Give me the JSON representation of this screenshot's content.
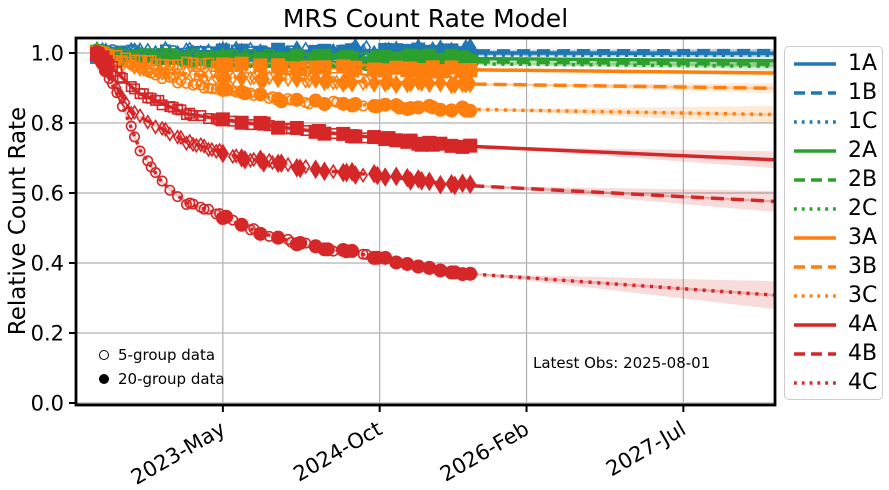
{
  "chart_data": {
    "type": "line",
    "title": "MRS Count Rate Model",
    "xlabel": "",
    "ylabel": "Relative Count Rate",
    "grid": true,
    "grid_color": "#b0b0b0",
    "background_color": "#ffffff",
    "legend_position": "outside-right",
    "x_axis": {
      "kind": "date",
      "range_decimal_years": [
        2022.0,
        2028.33
      ],
      "ticks": [
        {
          "t": 2023.33,
          "label": "2023-May"
        },
        {
          "t": 2024.75,
          "label": "2024-Oct"
        },
        {
          "t": 2026.08,
          "label": "2026-Feb"
        },
        {
          "t": 2027.5,
          "label": "2027-Jul"
        }
      ]
    },
    "y_axis": {
      "range": [
        -0.006,
        1.043
      ],
      "ticks": [
        {
          "v": 0.0,
          "label": "0.0"
        },
        {
          "v": 0.2,
          "label": "0.2"
        },
        {
          "v": 0.4,
          "label": "0.4"
        },
        {
          "v": 0.6,
          "label": "0.6"
        },
        {
          "v": 0.8,
          "label": "0.8"
        },
        {
          "v": 1.0,
          "label": "1.0"
        }
      ]
    },
    "annotations": {
      "latest_obs_label": "Latest Obs: 2025-08-01",
      "latest_obs_t": 2025.58
    },
    "marker_legend": [
      {
        "label": "5-group data",
        "filled": false
      },
      {
        "label": "20-group data",
        "filled": true
      }
    ],
    "series": [
      {
        "name": "1A",
        "channel": 1,
        "color": "#1f77b4",
        "style": "solid",
        "marker": "square",
        "scatter": 0.011,
        "band": 0.005,
        "points": [
          [
            2022.19,
            1.0
          ],
          [
            2022.5,
            1.0
          ],
          [
            2023.0,
            1.0
          ],
          [
            2024.0,
            1.0
          ],
          [
            2025.58,
            1.0
          ],
          [
            2028.33,
            0.999
          ]
        ]
      },
      {
        "name": "1B",
        "channel": 1,
        "color": "#1f77b4",
        "style": "dashed",
        "marker": "diamond",
        "scatter": 0.011,
        "band": 0.005,
        "points": [
          [
            2022.19,
            1.0
          ],
          [
            2022.5,
            1.002
          ],
          [
            2023.0,
            1.004
          ],
          [
            2024.0,
            1.005
          ],
          [
            2025.58,
            1.006
          ],
          [
            2028.33,
            1.007
          ]
        ]
      },
      {
        "name": "1C",
        "channel": 1,
        "color": "#1f77b4",
        "style": "dotted",
        "marker": "circle",
        "scatter": 0.011,
        "band": 0.006,
        "points": [
          [
            2022.19,
            1.0
          ],
          [
            2022.5,
            0.998
          ],
          [
            2023.0,
            0.996
          ],
          [
            2024.0,
            0.995
          ],
          [
            2025.58,
            0.994
          ],
          [
            2028.33,
            0.993
          ]
        ]
      },
      {
        "name": "2A",
        "channel": 2,
        "color": "#2ca02c",
        "style": "solid",
        "marker": "square",
        "scatter": 0.008,
        "band": 0.007,
        "points": [
          [
            2022.19,
            1.0
          ],
          [
            2022.5,
            0.993
          ],
          [
            2023.0,
            0.99
          ],
          [
            2024.0,
            0.987
          ],
          [
            2025.58,
            0.984
          ],
          [
            2028.33,
            0.978
          ]
        ]
      },
      {
        "name": "2B",
        "channel": 2,
        "color": "#2ca02c",
        "style": "dashed",
        "marker": "diamond",
        "scatter": 0.008,
        "band": 0.009,
        "points": [
          [
            2022.19,
            1.0
          ],
          [
            2022.5,
            0.989
          ],
          [
            2023.0,
            0.984
          ],
          [
            2024.0,
            0.979
          ],
          [
            2025.58,
            0.975
          ],
          [
            2028.33,
            0.968
          ]
        ]
      },
      {
        "name": "2C",
        "channel": 2,
        "color": "#2ca02c",
        "style": "dotted",
        "marker": "circle",
        "scatter": 0.008,
        "band": 0.012,
        "points": [
          [
            2022.19,
            1.0
          ],
          [
            2022.5,
            0.986
          ],
          [
            2023.0,
            0.979
          ],
          [
            2024.0,
            0.973
          ],
          [
            2025.58,
            0.969
          ],
          [
            2028.33,
            0.962
          ]
        ]
      },
      {
        "name": "3A",
        "channel": 3,
        "color": "#ff7f0e",
        "style": "solid",
        "marker": "square",
        "scatter": 0.0065,
        "band": 0.008,
        "points": [
          [
            2022.19,
            1.0
          ],
          [
            2022.5,
            0.978
          ],
          [
            2023.0,
            0.968
          ],
          [
            2023.5,
            0.963
          ],
          [
            2024.5,
            0.957
          ],
          [
            2025.58,
            0.952
          ],
          [
            2028.33,
            0.943
          ]
        ]
      },
      {
        "name": "3B",
        "channel": 3,
        "color": "#ff7f0e",
        "style": "dashed",
        "marker": "diamond",
        "scatter": 0.0065,
        "band": 0.014,
        "points": [
          [
            2022.19,
            1.0
          ],
          [
            2022.45,
            0.965
          ],
          [
            2022.8,
            0.947
          ],
          [
            2023.2,
            0.934
          ],
          [
            2023.8,
            0.926
          ],
          [
            2024.5,
            0.919
          ],
          [
            2025.58,
            0.911
          ],
          [
            2028.33,
            0.899
          ]
        ]
      },
      {
        "name": "3C",
        "channel": 3,
        "color": "#ff7f0e",
        "style": "dotted",
        "marker": "circle",
        "scatter": 0.0065,
        "band": 0.025,
        "points": [
          [
            2022.19,
            1.0
          ],
          [
            2022.4,
            0.972
          ],
          [
            2022.63,
            0.947
          ],
          [
            2023.0,
            0.913
          ],
          [
            2023.3,
            0.896
          ],
          [
            2023.6,
            0.879
          ],
          [
            2024.0,
            0.863
          ],
          [
            2024.76,
            0.849
          ],
          [
            2025.58,
            0.839
          ],
          [
            2028.33,
            0.824
          ]
        ]
      },
      {
        "name": "4A",
        "channel": 4,
        "color": "#d62728",
        "style": "solid",
        "marker": "square",
        "scatter": 0.005,
        "band": 0.024,
        "points": [
          [
            2022.19,
            1.0
          ],
          [
            2022.56,
            0.886
          ],
          [
            2023.0,
            0.826
          ],
          [
            2023.53,
            0.801
          ],
          [
            2024.17,
            0.776
          ],
          [
            2024.76,
            0.757
          ],
          [
            2025.14,
            0.742
          ],
          [
            2025.58,
            0.733
          ],
          [
            2028.33,
            0.695
          ]
        ]
      },
      {
        "name": "4B",
        "channel": 4,
        "color": "#d62728",
        "style": "dashed",
        "marker": "diamond",
        "scatter": 0.005,
        "band": 0.03,
        "points": [
          [
            2022.19,
            1.0
          ],
          [
            2022.5,
            0.831
          ],
          [
            2023.0,
            0.746
          ],
          [
            2023.5,
            0.701
          ],
          [
            2024.17,
            0.666
          ],
          [
            2024.76,
            0.65
          ],
          [
            2025.18,
            0.632
          ],
          [
            2025.58,
            0.621
          ],
          [
            2028.33,
            0.576
          ]
        ]
      },
      {
        "name": "4C",
        "channel": 4,
        "color": "#d62728",
        "style": "dotted",
        "marker": "circle",
        "scatter": 0.005,
        "band": 0.04,
        "points": [
          [
            2022.19,
            1.0
          ],
          [
            2022.42,
            0.85
          ],
          [
            2022.58,
            0.723
          ],
          [
            2022.78,
            0.63
          ],
          [
            2023.0,
            0.572
          ],
          [
            2023.26,
            0.543
          ],
          [
            2023.53,
            0.503
          ],
          [
            2023.8,
            0.474
          ],
          [
            2024.16,
            0.446
          ],
          [
            2024.6,
            0.425
          ],
          [
            2024.9,
            0.406
          ],
          [
            2025.2,
            0.386
          ],
          [
            2025.58,
            0.369
          ],
          [
            2028.33,
            0.308
          ]
        ]
      }
    ],
    "epochs": [
      [
        2022.19,
        1
      ],
      [
        2022.21,
        0
      ],
      [
        2022.24,
        1
      ],
      [
        2022.3,
        0
      ],
      [
        2022.37,
        0
      ],
      [
        2022.42,
        0
      ],
      [
        2022.5,
        0
      ],
      [
        2022.58,
        0
      ],
      [
        2022.65,
        0
      ],
      [
        2022.72,
        0
      ],
      [
        2022.78,
        0
      ],
      [
        2022.85,
        0
      ],
      [
        2022.92,
        0
      ],
      [
        2023.0,
        0
      ],
      [
        2023.06,
        0
      ],
      [
        2023.13,
        0
      ],
      [
        2023.2,
        0
      ],
      [
        2023.27,
        0
      ],
      [
        2023.33,
        1
      ],
      [
        2023.42,
        0
      ],
      [
        2023.5,
        1
      ],
      [
        2023.58,
        0
      ],
      [
        2023.67,
        1
      ],
      [
        2023.75,
        0
      ],
      [
        2023.83,
        1
      ],
      [
        2023.92,
        0
      ],
      [
        2024.0,
        1
      ],
      [
        2024.08,
        0
      ],
      [
        2024.17,
        1
      ],
      [
        2024.25,
        1
      ],
      [
        2024.33,
        0
      ],
      [
        2024.42,
        1
      ],
      [
        2024.5,
        1
      ],
      [
        2024.6,
        0
      ],
      [
        2024.7,
        1
      ],
      [
        2024.8,
        1
      ],
      [
        2024.9,
        1
      ],
      [
        2025.0,
        1
      ],
      [
        2025.1,
        1
      ],
      [
        2025.2,
        1
      ],
      [
        2025.3,
        1
      ],
      [
        2025.4,
        1
      ],
      [
        2025.5,
        1
      ],
      [
        2025.57,
        1
      ]
    ]
  }
}
